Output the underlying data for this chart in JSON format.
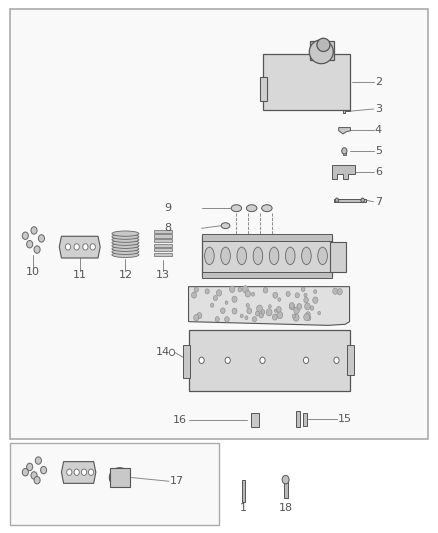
{
  "bg_color": "#ffffff",
  "line_color": "#888888",
  "text_color": "#555555",
  "part_labels": [
    "1",
    "2",
    "3",
    "4",
    "5",
    "6",
    "7",
    "8",
    "9",
    "10",
    "11",
    "12",
    "13",
    "14",
    "15",
    "16",
    "17",
    "18"
  ]
}
